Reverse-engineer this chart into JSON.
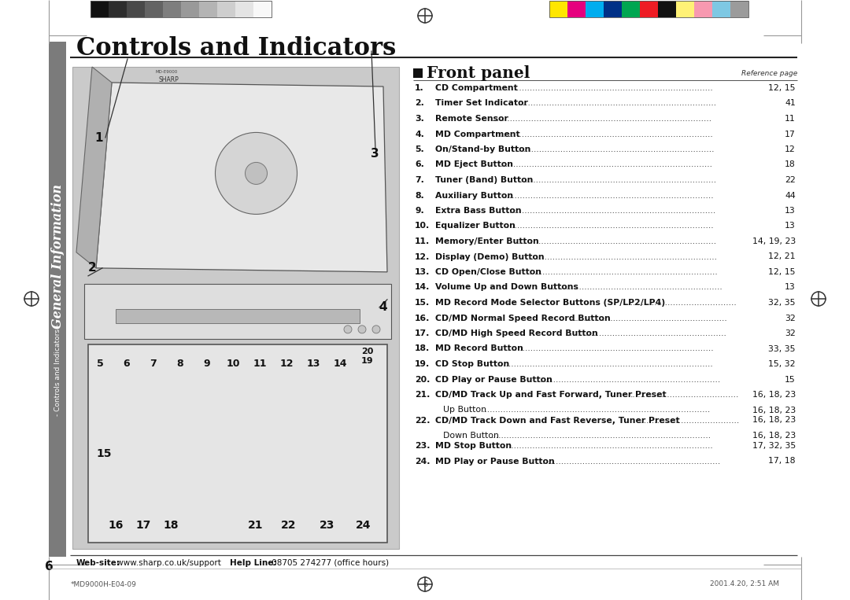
{
  "title": "Controls and Indicators",
  "section_label": "General Information",
  "section_sublabel": "- Controls and Indicators -",
  "page_number": "6",
  "footer_webtext_bold": "Web-site:",
  "footer_webtext_url": " www.sharp.co.uk/support",
  "footer_helpline_bold": "Help Line:",
  "footer_helpline_normal": " 08705 274277 (office hours)",
  "footer_left": "*MD9000H-E04-09",
  "footer_center": "6",
  "footer_right": "2001.4.20, 2:51 AM",
  "front_panel_title": "Front panel",
  "reference_page_label": "Reference page",
  "bg_color": "#FFFFFF",
  "sidebar_color": "#7B7B7B",
  "gray_swatches": [
    "#111111",
    "#2d2d2d",
    "#494949",
    "#636363",
    "#7e7e7e",
    "#999999",
    "#b4b4b4",
    "#cecece",
    "#e4e4e4",
    "#f8f8f8"
  ],
  "color_swatches": [
    "#FFE600",
    "#E6007E",
    "#00ADEF",
    "#003087",
    "#00A651",
    "#EE1C24",
    "#111111",
    "#FFF176",
    "#F799B0",
    "#7EC8E3",
    "#9B9B9B"
  ],
  "items": [
    {
      "num": "1.",
      "label": "CD Compartment",
      "page": "12, 15",
      "sub": null
    },
    {
      "num": "2.",
      "label": "Timer Set Indicator",
      "page": "41",
      "sub": null
    },
    {
      "num": "3.",
      "label": "Remote Sensor",
      "page": "11",
      "sub": null
    },
    {
      "num": "4.",
      "label": "MD Compartment",
      "page": "17",
      "sub": null
    },
    {
      "num": "5.",
      "label": "On/Stand-by Button",
      "page": "12",
      "sub": null
    },
    {
      "num": "6.",
      "label": "MD Eject Button",
      "page": "18",
      "sub": null
    },
    {
      "num": "7.",
      "label": "Tuner (Band) Button",
      "page": "22",
      "sub": null
    },
    {
      "num": "8.",
      "label": "Auxiliary Button",
      "page": "44",
      "sub": null
    },
    {
      "num": "9.",
      "label": "Extra Bass Button",
      "page": "13",
      "sub": null
    },
    {
      "num": "10.",
      "label": "Equalizer Button",
      "page": "13",
      "sub": null
    },
    {
      "num": "11.",
      "label": "Memory/Enter Button",
      "page": "14, 19, 23",
      "sub": null
    },
    {
      "num": "12.",
      "label": "Display (Demo) Button",
      "page": "12, 21",
      "sub": null
    },
    {
      "num": "13.",
      "label": "CD Open/Close Button",
      "page": "12, 15",
      "sub": null
    },
    {
      "num": "14.",
      "label": "Volume Up and Down Buttons",
      "page": "13",
      "sub": null
    },
    {
      "num": "15.",
      "label": "MD Record Mode Selector Buttons (SP/LP2/LP4)",
      "page": "32, 35",
      "sub": null
    },
    {
      "num": "16.",
      "label": "CD/MD Normal Speed Record Button",
      "page": "32",
      "sub": null
    },
    {
      "num": "17.",
      "label": "CD/MD High Speed Record Button",
      "page": "32",
      "sub": null
    },
    {
      "num": "18.",
      "label": "MD Record Button",
      "page": "33, 35",
      "sub": null
    },
    {
      "num": "19.",
      "label": "CD Stop Button",
      "page": "15, 32",
      "sub": null
    },
    {
      "num": "20.",
      "label": "CD Play or Pause Button",
      "page": "15",
      "sub": null
    },
    {
      "num": "21.",
      "label": "CD/MD Track Up and Fast Forward, Tuner Preset",
      "page": "16, 18, 23",
      "sub": "Up Button"
    },
    {
      "num": "22.",
      "label": "CD/MD Track Down and Fast Reverse, Tuner Preset",
      "page": "16, 18, 23",
      "sub": "Down Button"
    },
    {
      "num": "23.",
      "label": "MD Stop Button",
      "page": "17, 32, 35",
      "sub": null
    },
    {
      "num": "24.",
      "label": "MD Play or Pause Button",
      "page": "17, 18",
      "sub": null
    }
  ]
}
